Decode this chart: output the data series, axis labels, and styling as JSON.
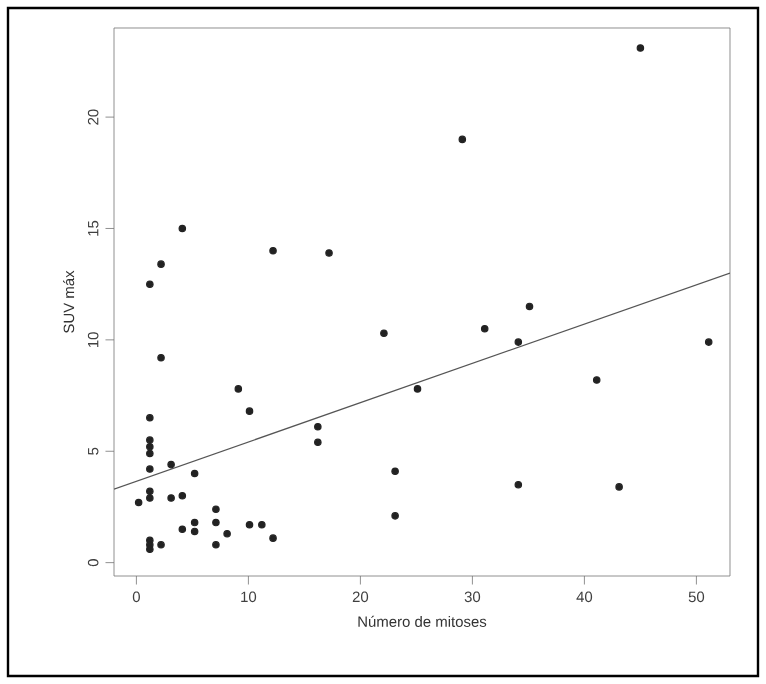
{
  "chart_data": {
    "type": "scatter",
    "xlabel": "Número de mitoses",
    "ylabel": "SUV máx",
    "xlim": [
      -2,
      53
    ],
    "ylim": [
      -0.6,
      24
    ],
    "xticks": [
      0,
      10,
      20,
      30,
      40,
      50
    ],
    "yticks": [
      0,
      5,
      10,
      15,
      20
    ],
    "grid": false,
    "series": [
      {
        "marker": "circle",
        "color": "#222222",
        "x": [
          1.2,
          4.1,
          2.2,
          2.2,
          12.2,
          17.2,
          1.2,
          1.2,
          1.2,
          1.2,
          1.2,
          1.2,
          1.2,
          1.2,
          1.2,
          1.2,
          2.2,
          0.2,
          3.1,
          5.2,
          3.1,
          4.1,
          4.1,
          5.2,
          5.2,
          7.1,
          7.1,
          7.1,
          8.1,
          9.1,
          10.1,
          10.1,
          11.2,
          12.2,
          16.2,
          16.2,
          22.1,
          45.0,
          29.1,
          35.1,
          31.1,
          34.1,
          51.1,
          25.1,
          41.1,
          23.1,
          23.1,
          34.1,
          43.1
        ],
        "values": [
          12.5,
          15.0,
          13.4,
          9.2,
          14.0,
          13.9,
          6.5,
          5.5,
          5.2,
          4.9,
          4.2,
          3.2,
          2.9,
          1.0,
          0.8,
          0.6,
          0.8,
          2.7,
          4.4,
          4.0,
          2.9,
          3.0,
          1.5,
          1.8,
          1.4,
          2.4,
          1.8,
          0.8,
          1.3,
          7.8,
          6.8,
          1.7,
          1.7,
          1.1,
          6.1,
          5.4,
          10.3,
          23.1,
          19.0,
          11.5,
          10.5,
          9.9,
          9.9,
          7.8,
          8.2,
          4.1,
          2.1,
          3.5,
          3.4
        ]
      },
      {
        "type": "line",
        "color": "#555555",
        "marker": "none",
        "x": [
          -2,
          53
        ],
        "values": [
          3.3,
          13.0
        ]
      }
    ]
  }
}
